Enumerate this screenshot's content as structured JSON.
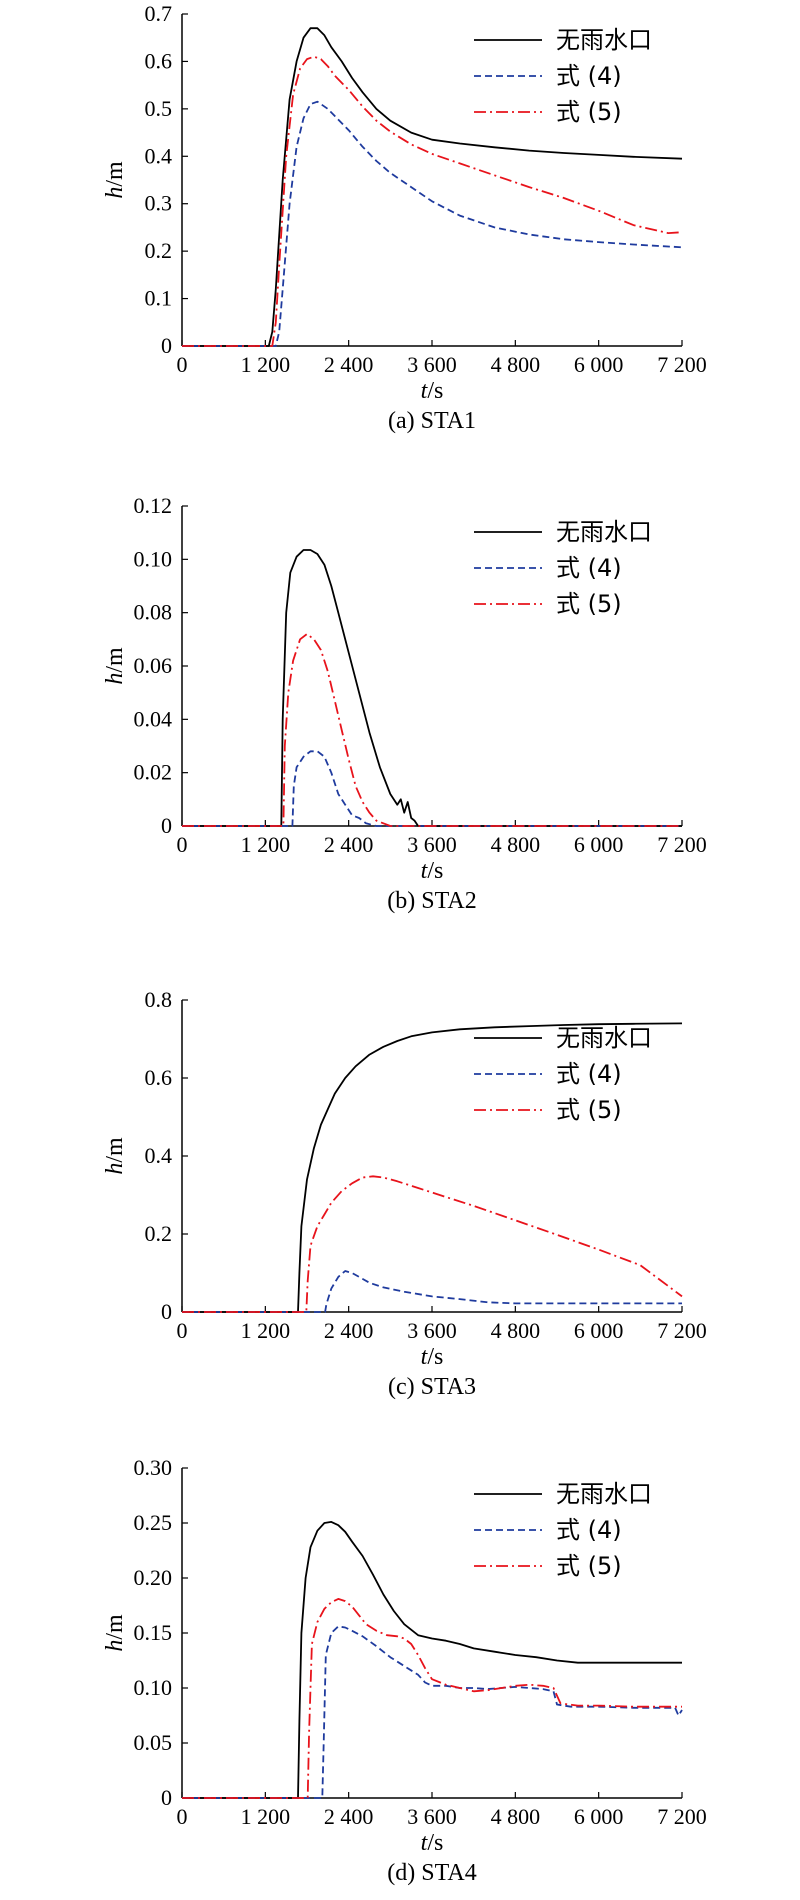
{
  "chart_data": [
    {
      "type": "line",
      "caption": "(a) STA1",
      "xlabel": "t/s",
      "ylabel": "h/m",
      "xlim": [
        0,
        7200
      ],
      "ylim": [
        0,
        0.7
      ],
      "xticks": [
        0,
        1200,
        2400,
        3600,
        4800,
        6000,
        7200
      ],
      "xtick_labels": [
        "0",
        "1 200",
        "2 400",
        "3 600",
        "4 800",
        "6 000",
        "7 200"
      ],
      "yticks": [
        0,
        0.1,
        0.2,
        0.3,
        0.4,
        0.5,
        0.6,
        0.7
      ],
      "ytick_labels": [
        "0",
        "0.1",
        "0.2",
        "0.3",
        "0.4",
        "0.5",
        "0.6",
        "0.7"
      ],
      "legend_position": "top-right",
      "series": [
        {
          "name": "无雨水口",
          "style": "solid",
          "color": "#000000",
          "x": [
            0,
            1250,
            1300,
            1350,
            1450,
            1550,
            1650,
            1750,
            1850,
            1950,
            2050,
            2150,
            2300,
            2450,
            2600,
            2800,
            3000,
            3300,
            3600,
            4000,
            4500,
            5000,
            5500,
            6000,
            6500,
            7200
          ],
          "y": [
            0,
            0,
            0.03,
            0.12,
            0.35,
            0.52,
            0.6,
            0.65,
            0.67,
            0.67,
            0.655,
            0.63,
            0.6,
            0.565,
            0.535,
            0.5,
            0.475,
            0.45,
            0.435,
            0.427,
            0.419,
            0.412,
            0.407,
            0.403,
            0.399,
            0.395
          ]
        },
        {
          "name": "式 (4)",
          "style": "dashed",
          "color": "#1f3b9e",
          "x": [
            0,
            1350,
            1400,
            1450,
            1550,
            1650,
            1750,
            1850,
            1950,
            2000,
            2100,
            2200,
            2400,
            2600,
            2800,
            3000,
            3300,
            3600,
            4000,
            4500,
            5000,
            5500,
            6000,
            6500,
            7200
          ],
          "y": [
            0,
            0,
            0.03,
            0.12,
            0.3,
            0.42,
            0.48,
            0.51,
            0.515,
            0.51,
            0.5,
            0.485,
            0.455,
            0.42,
            0.39,
            0.365,
            0.335,
            0.305,
            0.275,
            0.25,
            0.235,
            0.225,
            0.219,
            0.214,
            0.208
          ]
        },
        {
          "name": "式 (5)",
          "style": "dashdot",
          "color": "#e8131b",
          "x": [
            0,
            1300,
            1350,
            1400,
            1500,
            1600,
            1700,
            1800,
            1900,
            2000,
            2100,
            2200,
            2400,
            2600,
            2800,
            3000,
            3300,
            3600,
            4000,
            4500,
            5000,
            5500,
            6000,
            6500,
            7000,
            7200
          ],
          "y": [
            0,
            0,
            0.05,
            0.17,
            0.4,
            0.53,
            0.585,
            0.605,
            0.61,
            0.605,
            0.59,
            0.57,
            0.54,
            0.505,
            0.475,
            0.452,
            0.425,
            0.405,
            0.385,
            0.36,
            0.335,
            0.312,
            0.285,
            0.255,
            0.238,
            0.24
          ]
        }
      ]
    },
    {
      "type": "line",
      "caption": "(b) STA2",
      "xlabel": "t/s",
      "ylabel": "h/m",
      "xlim": [
        0,
        7200
      ],
      "ylim": [
        0,
        0.12
      ],
      "xticks": [
        0,
        1200,
        2400,
        3600,
        4800,
        6000,
        7200
      ],
      "xtick_labels": [
        "0",
        "1 200",
        "2 400",
        "3 600",
        "4 800",
        "6 000",
        "7 200"
      ],
      "yticks": [
        0,
        0.02,
        0.04,
        0.06,
        0.08,
        0.1,
        0.12
      ],
      "ytick_labels": [
        "0",
        "0.02",
        "0.04",
        "0.06",
        "0.08",
        "0.10",
        "0.12"
      ],
      "legend_position": "top-right",
      "series": [
        {
          "name": "无雨水口",
          "style": "solid",
          "color": "#000000",
          "x": [
            0,
            1430,
            1450,
            1500,
            1560,
            1650,
            1750,
            1850,
            1950,
            2050,
            2150,
            2250,
            2400,
            2550,
            2700,
            2850,
            3000,
            3100,
            3150,
            3200,
            3250,
            3300,
            3350,
            3400,
            7200
          ],
          "y": [
            0,
            0,
            0.04,
            0.08,
            0.095,
            0.101,
            0.1035,
            0.1035,
            0.102,
            0.098,
            0.09,
            0.08,
            0.065,
            0.05,
            0.035,
            0.022,
            0.012,
            0.008,
            0.01,
            0.005,
            0.009,
            0.003,
            0.002,
            0,
            0
          ]
        },
        {
          "name": "式 (4)",
          "style": "dashed",
          "color": "#1f3b9e",
          "x": [
            0,
            1590,
            1610,
            1650,
            1750,
            1850,
            1950,
            2050,
            2150,
            2250,
            2350,
            2450,
            2550,
            2650,
            2800,
            7200
          ],
          "y": [
            0,
            0,
            0.015,
            0.022,
            0.026,
            0.028,
            0.028,
            0.026,
            0.02,
            0.012,
            0.008,
            0.004,
            0.003,
            0.001,
            0,
            0
          ]
        },
        {
          "name": "式 (5)",
          "style": "dashdot",
          "color": "#e8131b",
          "x": [
            0,
            1460,
            1480,
            1530,
            1600,
            1700,
            1800,
            1900,
            2000,
            2100,
            2200,
            2300,
            2400,
            2500,
            2600,
            2700,
            2800,
            2900,
            3000,
            7200
          ],
          "y": [
            0,
            0,
            0.03,
            0.05,
            0.062,
            0.07,
            0.072,
            0.07,
            0.066,
            0.058,
            0.047,
            0.036,
            0.025,
            0.015,
            0.009,
            0.005,
            0.002,
            0.001,
            0,
            0
          ]
        }
      ]
    },
    {
      "type": "line",
      "caption": "(c) STA3",
      "xlabel": "t/s",
      "ylabel": "h/m",
      "xlim": [
        0,
        7200
      ],
      "ylim": [
        0,
        0.8
      ],
      "xticks": [
        0,
        1200,
        2400,
        3600,
        4800,
        6000,
        7200
      ],
      "xtick_labels": [
        "0",
        "1 200",
        "2 400",
        "3 600",
        "4 800",
        "6 000",
        "7 200"
      ],
      "yticks": [
        0,
        0.2,
        0.4,
        0.6,
        0.8
      ],
      "ytick_labels": [
        "0",
        "0.2",
        "0.4",
        "0.6",
        "0.8"
      ],
      "legend_position": "right",
      "series": [
        {
          "name": "无雨水口",
          "style": "solid",
          "color": "#000000",
          "x": [
            0,
            1670,
            1690,
            1720,
            1800,
            1900,
            2000,
            2100,
            2200,
            2350,
            2500,
            2700,
            2900,
            3100,
            3300,
            3600,
            4000,
            4500,
            5000,
            5500,
            6000,
            6500,
            7200
          ],
          "y": [
            0,
            0,
            0.1,
            0.22,
            0.34,
            0.42,
            0.48,
            0.52,
            0.56,
            0.6,
            0.63,
            0.66,
            0.68,
            0.695,
            0.707,
            0.717,
            0.725,
            0.73,
            0.733,
            0.736,
            0.738,
            0.739,
            0.74
          ]
        },
        {
          "name": "式 (4)",
          "style": "dashed",
          "color": "#1f3b9e",
          "x": [
            0,
            2060,
            2080,
            2150,
            2250,
            2350,
            2450,
            2550,
            2700,
            2900,
            3200,
            3600,
            4000,
            4400,
            4800,
            5500,
            6000,
            7200
          ],
          "y": [
            0,
            0,
            0.02,
            0.06,
            0.09,
            0.105,
            0.1,
            0.09,
            0.075,
            0.063,
            0.052,
            0.04,
            0.033,
            0.025,
            0.022,
            0.022,
            0.022,
            0.022
          ]
        },
        {
          "name": "式 (5)",
          "style": "dashdot",
          "color": "#e8131b",
          "x": [
            0,
            1790,
            1810,
            1850,
            1950,
            2050,
            2150,
            2300,
            2450,
            2600,
            2750,
            2900,
            3100,
            3400,
            3800,
            4200,
            4800,
            5400,
            6000,
            6600,
            7200
          ],
          "y": [
            0,
            0,
            0.08,
            0.17,
            0.22,
            0.25,
            0.28,
            0.31,
            0.33,
            0.345,
            0.348,
            0.345,
            0.335,
            0.318,
            0.295,
            0.272,
            0.235,
            0.198,
            0.16,
            0.12,
            0.04
          ]
        }
      ]
    },
    {
      "type": "line",
      "caption": "(d) STA4",
      "xlabel": "t/s",
      "ylabel": "h/m",
      "xlim": [
        0,
        7200
      ],
      "ylim": [
        0,
        0.3
      ],
      "xticks": [
        0,
        1200,
        2400,
        3600,
        4800,
        6000,
        7200
      ],
      "xtick_labels": [
        "0",
        "1 200",
        "2 400",
        "3 600",
        "4 800",
        "6 000",
        "7 200"
      ],
      "yticks": [
        0,
        0.05,
        0.1,
        0.15,
        0.2,
        0.25,
        0.3
      ],
      "ytick_labels": [
        "0",
        "0.05",
        "0.10",
        "0.15",
        "0.20",
        "0.25",
        "0.30"
      ],
      "legend_position": "top-right",
      "series": [
        {
          "name": "无雨水口",
          "style": "solid",
          "color": "#000000",
          "x": [
            0,
            1670,
            1690,
            1720,
            1780,
            1850,
            1950,
            2050,
            2150,
            2250,
            2350,
            2450,
            2600,
            2750,
            2900,
            3050,
            3200,
            3400,
            3600,
            3800,
            4000,
            4200,
            4500,
            4800,
            5100,
            5400,
            5700,
            6000,
            6500,
            7200
          ],
          "y": [
            0,
            0,
            0.07,
            0.15,
            0.2,
            0.228,
            0.243,
            0.25,
            0.251,
            0.248,
            0.242,
            0.233,
            0.22,
            0.203,
            0.185,
            0.17,
            0.158,
            0.148,
            0.145,
            0.143,
            0.14,
            0.136,
            0.133,
            0.13,
            0.128,
            0.125,
            0.123,
            0.123,
            0.123,
            0.123
          ]
        },
        {
          "name": "式 (4)",
          "style": "dashed",
          "color": "#1f3b9e",
          "x": [
            0,
            2020,
            2040,
            2070,
            2150,
            2250,
            2350,
            2450,
            2600,
            2800,
            3000,
            3200,
            3400,
            3500,
            3600,
            3800,
            4000,
            4200,
            4400,
            4600,
            4800,
            5000,
            5200,
            5350,
            5400,
            5600,
            6000,
            6500,
            7000,
            7100,
            7150,
            7200
          ],
          "y": [
            0,
            0,
            0.05,
            0.13,
            0.15,
            0.156,
            0.155,
            0.152,
            0.147,
            0.138,
            0.128,
            0.12,
            0.112,
            0.105,
            0.102,
            0.102,
            0.1,
            0.1,
            0.099,
            0.1,
            0.101,
            0.1,
            0.099,
            0.097,
            0.085,
            0.083,
            0.083,
            0.082,
            0.082,
            0.082,
            0.075,
            0.08
          ]
        },
        {
          "name": "式 (5)",
          "style": "dashdot",
          "color": "#e8131b",
          "x": [
            0,
            1810,
            1830,
            1870,
            1950,
            2050,
            2150,
            2250,
            2350,
            2450,
            2550,
            2650,
            2800,
            2950,
            3100,
            3200,
            3300,
            3400,
            3500,
            3600,
            3800,
            4000,
            4200,
            4400,
            4600,
            4800,
            5000,
            5200,
            5350,
            5450,
            5700,
            6000,
            6500,
            7000,
            7200
          ],
          "y": [
            0,
            0,
            0.06,
            0.14,
            0.16,
            0.172,
            0.178,
            0.181,
            0.179,
            0.174,
            0.166,
            0.158,
            0.152,
            0.148,
            0.147,
            0.145,
            0.14,
            0.13,
            0.118,
            0.108,
            0.103,
            0.1,
            0.097,
            0.098,
            0.1,
            0.102,
            0.103,
            0.102,
            0.1,
            0.086,
            0.084,
            0.084,
            0.083,
            0.083,
            0.083
          ]
        }
      ]
    }
  ]
}
